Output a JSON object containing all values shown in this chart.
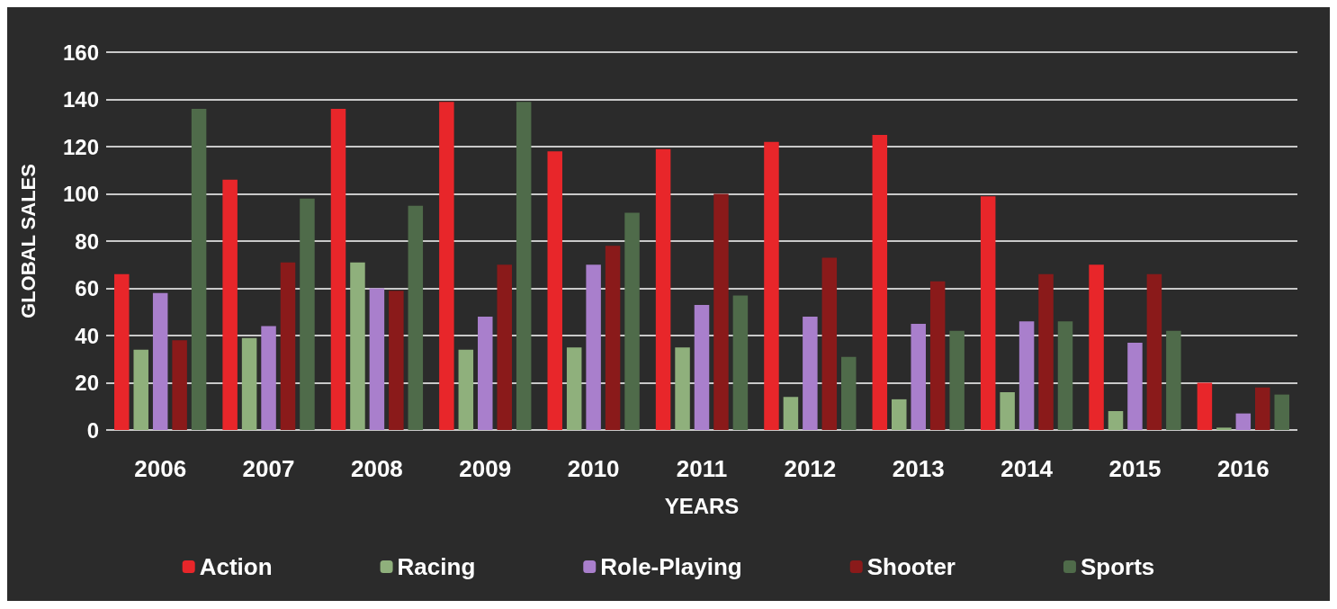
{
  "chart_data": {
    "type": "bar",
    "xlabel": "YEARS",
    "ylabel": "GLOBAL SALES",
    "categories": [
      "2006",
      "2007",
      "2008",
      "2009",
      "2010",
      "2011",
      "2012",
      "2013",
      "2014",
      "2015",
      "2016"
    ],
    "series": [
      {
        "name": "Action",
        "color": "#e8262a",
        "values": [
          66,
          106,
          136,
          139,
          118,
          119,
          122,
          125,
          99,
          70,
          20
        ]
      },
      {
        "name": "Racing",
        "color": "#8fb07c",
        "values": [
          34,
          39,
          71,
          34,
          35,
          35,
          14,
          13,
          16,
          8,
          1
        ]
      },
      {
        "name": "Role-Playing",
        "color": "#a97fcc",
        "values": [
          58,
          44,
          60,
          48,
          70,
          53,
          48,
          45,
          46,
          37,
          7
        ]
      },
      {
        "name": "Shooter",
        "color": "#8a1a1a",
        "values": [
          38,
          71,
          59,
          70,
          78,
          100,
          73,
          63,
          66,
          66,
          18
        ]
      },
      {
        "name": "Sports",
        "color": "#4f6b4a",
        "values": [
          136,
          98,
          95,
          139,
          92,
          57,
          31,
          42,
          46,
          42,
          15
        ]
      }
    ],
    "ylim": [
      0,
      160
    ],
    "yticks": [
      0,
      20,
      40,
      60,
      80,
      100,
      120,
      140,
      160
    ],
    "grid": "y",
    "legend": "bottom"
  }
}
